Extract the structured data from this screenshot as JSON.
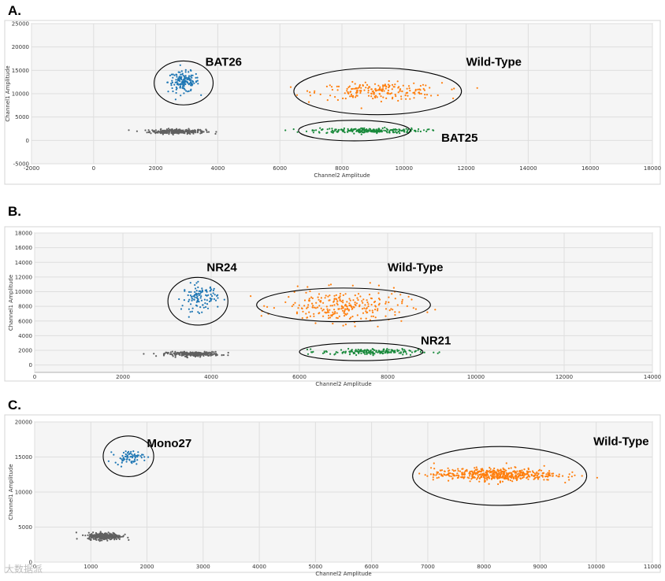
{
  "panels": [
    {
      "letter": "A.",
      "chart_data": {
        "type": "scatter",
        "xlabel": "Channel2 Amplitude",
        "ylabel": "Channel1 Amplitude",
        "xlim": [
          -2000,
          18000
        ],
        "ylim": [
          -5000,
          25000
        ],
        "xticks": [
          -2000,
          0,
          2000,
          4000,
          6000,
          8000,
          10000,
          12000,
          14000,
          16000,
          18000
        ],
        "yticks": [
          -5000,
          0,
          5000,
          10000,
          15000,
          20000,
          25000
        ],
        "grid": true,
        "clusters": [
          {
            "label": "",
            "color": "#606060",
            "n": 260,
            "cx": 2700,
            "cy": 1900,
            "sx": 450,
            "sy": 250
          },
          {
            "label": "BAT26",
            "color": "#1f77b4",
            "n": 150,
            "cx": 2900,
            "cy": 12500,
            "sx": 250,
            "sy": 1100
          },
          {
            "label": "Wild-Type",
            "color": "#ff7f0e",
            "n": 200,
            "cx": 9200,
            "cy": 10500,
            "sx": 1000,
            "sy": 900
          },
          {
            "label": "BAT25",
            "color": "#1a8a3c",
            "n": 220,
            "cx": 8800,
            "cy": 2100,
            "sx": 900,
            "sy": 280
          }
        ],
        "annotations": [
          {
            "text": "BAT26",
            "x": 3600,
            "y": 16000,
            "ex": 2900,
            "ey": 12300,
            "rx": 950,
            "ry": 4700
          },
          {
            "text": "Wild-Type",
            "x": 12000,
            "y": 16000,
            "ex": 9150,
            "ey": 10500,
            "rx": 2700,
            "ry": 5000
          },
          {
            "text": "BAT25",
            "x": 11200,
            "y": -300,
            "ex": 8400,
            "ey": 2100,
            "rx": 1800,
            "ry": 2200
          }
        ]
      }
    },
    {
      "letter": "B.",
      "chart_data": {
        "type": "scatter",
        "xlabel": "Channel2 Amplitude",
        "ylabel": "Channel1 Amplitude",
        "xlim": [
          0,
          14000
        ],
        "ylim": [
          -1000,
          18000
        ],
        "xticks": [
          0,
          2000,
          4000,
          6000,
          8000,
          10000,
          12000,
          14000
        ],
        "yticks": [
          0,
          2000,
          4000,
          6000,
          8000,
          10000,
          12000,
          14000,
          16000,
          18000
        ],
        "grid": true,
        "clusters": [
          {
            "label": "",
            "color": "#606060",
            "n": 260,
            "cx": 3600,
            "cy": 1500,
            "sx": 300,
            "sy": 150
          },
          {
            "label": "NR24",
            "color": "#1f77b4",
            "n": 110,
            "cx": 3750,
            "cy": 9200,
            "sx": 200,
            "sy": 900
          },
          {
            "label": "Wild-Type",
            "color": "#ff7f0e",
            "n": 260,
            "cx": 7000,
            "cy": 8000,
            "sx": 700,
            "sy": 1100
          },
          {
            "label": "NR21",
            "color": "#1a8a3c",
            "n": 170,
            "cx": 7600,
            "cy": 1800,
            "sx": 550,
            "sy": 200
          }
        ],
        "annotations": [
          {
            "text": "NR24",
            "x": 3900,
            "y": 12800,
            "ex": 3700,
            "ey": 8700,
            "rx": 680,
            "ry": 3250
          },
          {
            "text": "Wild-Type",
            "x": 8000,
            "y": 12800,
            "ex": 7000,
            "ey": 8200,
            "rx": 1970,
            "ry": 2300
          },
          {
            "text": "NR21",
            "x": 8750,
            "y": 2800,
            "ex": 7400,
            "ey": 1800,
            "rx": 1400,
            "ry": 1200
          }
        ]
      }
    },
    {
      "letter": "C.",
      "chart_data": {
        "type": "scatter",
        "xlabel": "Channel2 Amplitude",
        "ylabel": "Channel1 Amplitude",
        "xlim": [
          0,
          11000
        ],
        "ylim": [
          0,
          20000
        ],
        "xticks": [
          0,
          1000,
          2000,
          3000,
          4000,
          5000,
          6000,
          7000,
          8000,
          9000,
          10000,
          11000
        ],
        "yticks": [
          0,
          5000,
          10000,
          15000,
          20000
        ],
        "grid": true,
        "clusters": [
          {
            "label": "",
            "color": "#606060",
            "n": 300,
            "cx": 1250,
            "cy": 3700,
            "sx": 150,
            "sy": 250
          },
          {
            "label": "Mono27",
            "color": "#1f77b4",
            "n": 70,
            "cx": 1680,
            "cy": 15000,
            "sx": 130,
            "sy": 450
          },
          {
            "label": "Wild-Type",
            "color": "#ff7f0e",
            "n": 480,
            "cx": 8200,
            "cy": 12500,
            "sx": 550,
            "sy": 450
          }
        ],
        "annotations": [
          {
            "text": "Mono27",
            "x": 2000,
            "y": 16400,
            "ex": 1670,
            "ey": 15100,
            "rx": 450,
            "ry": 2900
          },
          {
            "text": "Wild-Type",
            "x": 9950,
            "y": 16700,
            "ex": 8280,
            "ey": 12300,
            "rx": 1550,
            "ry": 4200
          }
        ]
      }
    }
  ],
  "watermark": "大数据派"
}
